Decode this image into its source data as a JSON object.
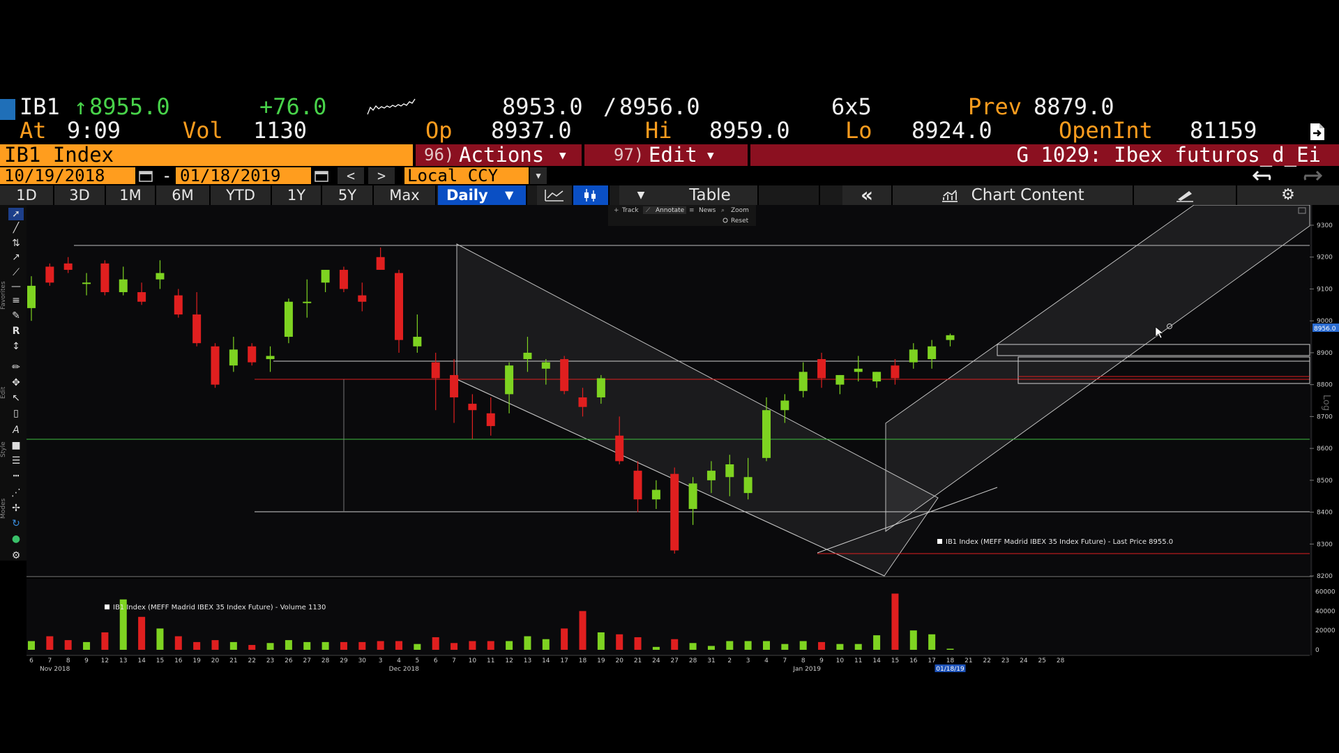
{
  "quote": {
    "ticker": "IB1",
    "arrow": "↑",
    "last": "8955.0",
    "change": "+76.0",
    "bid_ask_bid": "8953.0",
    "bid_ask_sep": "/",
    "bid_ask_ask": "8956.0",
    "size": "6x5",
    "prev_label": "Prev",
    "prev_value": "8879.0",
    "at_label": "At",
    "at_time": "9:09",
    "vol_label": "Vol",
    "vol_value": "1130",
    "op_label": "Op",
    "op_value": "8937.0",
    "hi_label": "Hi",
    "hi_value": "8959.0",
    "lo_label": "Lo",
    "lo_value": "8924.0",
    "oi_label": "OpenInt",
    "oi_value": "81159"
  },
  "security_bar": {
    "security": "IB1 Index",
    "actions_num": "96)",
    "actions_label": "Actions",
    "edit_num": "97)",
    "edit_label": "Edit",
    "chart_title": "G 1029: Ibex futuros_d_Ei"
  },
  "date_bar": {
    "start_date": "10/19/2018",
    "dash": "-",
    "end_date": "01/18/2019",
    "prev_btn": "<",
    "next_btn": ">",
    "currency": "Local CCY"
  },
  "range_bar": {
    "ranges": [
      "1D",
      "3D",
      "1M",
      "6M",
      "YTD",
      "1Y",
      "5Y",
      "Max"
    ],
    "period": "Daily",
    "table_label": "Table",
    "collapse": "«",
    "chart_content": "Chart Content"
  },
  "chart_toolbar": {
    "track": "Track",
    "annotate": "Annotate",
    "news": "News",
    "zoom": "Zoom",
    "reset": "Reset"
  },
  "side_labels": {
    "favorites": "Favorites",
    "edit": "Edit",
    "style": "Style",
    "modes": "Modes"
  },
  "colors": {
    "up": "#7ed321",
    "down": "#e01f1f",
    "accent": "#ff9d1e",
    "red_bar": "#8b1020",
    "blue_btn": "#0a4fc4"
  },
  "chart_data": {
    "type": "candlestick",
    "price_legend": "IB1 Index (MEFF Madrid IBEX 35 Index Future) - Last Price 8955.0",
    "volume_legend": "IB1 Index (MEFF Madrid IBEX 35 Index Future) - Volume 1130",
    "last_price_tag": "8956.0",
    "scale_label": "Log",
    "price_ticks": [
      "9300",
      "9200",
      "9100",
      "9000",
      "8900",
      "8800",
      "8700",
      "8600",
      "8500",
      "8400",
      "8300",
      "8200"
    ],
    "volume_ticks": [
      "60000",
      "40000",
      "20000",
      "0"
    ],
    "months": [
      {
        "label": "Nov 2018",
        "at": 0
      },
      {
        "label": "Dec 2018",
        "at": 19
      },
      {
        "label": "Jan 2019",
        "at": 41
      }
    ],
    "end_date_marker": "01/18/19",
    "days": [
      "6",
      "7",
      "8",
      "9",
      "12",
      "13",
      "14",
      "15",
      "16",
      "19",
      "20",
      "21",
      "22",
      "23",
      "26",
      "27",
      "28",
      "29",
      "30",
      "3",
      "4",
      "5",
      "6",
      "7",
      "10",
      "11",
      "12",
      "13",
      "14",
      "17",
      "18",
      "19",
      "20",
      "21",
      "24",
      "27",
      "28",
      "31",
      "2",
      "3",
      "4",
      "7",
      "8",
      "9",
      "10",
      "11",
      "14",
      "15",
      "16",
      "17",
      "18"
    ],
    "future_days": [
      "21",
      "22",
      "23",
      "24",
      "25",
      "28"
    ],
    "ohlc": [
      [
        9040,
        9140,
        9000,
        9110
      ],
      [
        9170,
        9180,
        9110,
        9120
      ],
      [
        9180,
        9200,
        9150,
        9160
      ],
      [
        9120,
        9150,
        9080,
        9120
      ],
      [
        9180,
        9190,
        9080,
        9090
      ],
      [
        9090,
        9170,
        9080,
        9130
      ],
      [
        9090,
        9120,
        9050,
        9060
      ],
      [
        9130,
        9190,
        9100,
        9150
      ],
      [
        9080,
        9100,
        9010,
        9020
      ],
      [
        9020,
        9090,
        8920,
        8930
      ],
      [
        8920,
        8930,
        8790,
        8800
      ],
      [
        8860,
        8950,
        8840,
        8910
      ],
      [
        8920,
        8930,
        8860,
        8870
      ],
      [
        8880,
        8920,
        8840,
        8890
      ],
      [
        8950,
        9070,
        8930,
        9060
      ],
      [
        9060,
        9130,
        9010,
        9060
      ],
      [
        9120,
        9160,
        9090,
        9160
      ],
      [
        9160,
        9170,
        9090,
        9100
      ],
      [
        9080,
        9120,
        9030,
        9060
      ],
      [
        9200,
        9230,
        9160,
        9160
      ],
      [
        9150,
        9160,
        8900,
        8940
      ],
      [
        8920,
        9020,
        8900,
        8950
      ],
      [
        8870,
        8900,
        8720,
        8820
      ],
      [
        8830,
        8880,
        8680,
        8760
      ],
      [
        8740,
        8770,
        8630,
        8720
      ],
      [
        8710,
        8760,
        8640,
        8670
      ],
      [
        8770,
        8870,
        8710,
        8860
      ],
      [
        8880,
        8950,
        8840,
        8900
      ],
      [
        8850,
        8880,
        8800,
        8870
      ],
      [
        8880,
        8890,
        8770,
        8780
      ],
      [
        8760,
        8790,
        8700,
        8730
      ],
      [
        8760,
        8830,
        8740,
        8820
      ],
      [
        8640,
        8700,
        8550,
        8560
      ],
      [
        8530,
        8560,
        8400,
        8440
      ],
      [
        8440,
        8500,
        8410,
        8470
      ],
      [
        8520,
        8540,
        8270,
        8280
      ],
      [
        8410,
        8510,
        8360,
        8490
      ],
      [
        8500,
        8560,
        8460,
        8530
      ],
      [
        8510,
        8580,
        8450,
        8550
      ],
      [
        8460,
        8570,
        8440,
        8510
      ],
      [
        8570,
        8760,
        8560,
        8720
      ],
      [
        8720,
        8770,
        8680,
        8750
      ],
      [
        8780,
        8870,
        8760,
        8840
      ],
      [
        8880,
        8900,
        8790,
        8820
      ],
      [
        8800,
        8830,
        8770,
        8830
      ],
      [
        8840,
        8890,
        8810,
        8850
      ],
      [
        8810,
        8840,
        8790,
        8840
      ],
      [
        8860,
        8880,
        8800,
        8820
      ],
      [
        8870,
        8930,
        8850,
        8910
      ],
      [
        8880,
        8940,
        8850,
        8920
      ],
      [
        8940,
        8960,
        8920,
        8955
      ]
    ],
    "volume": [
      9000,
      14000,
      10000,
      8000,
      18000,
      52000,
      34000,
      22000,
      14000,
      8000,
      10000,
      8000,
      5000,
      7000,
      10000,
      8000,
      8000,
      8000,
      8000,
      9000,
      9000,
      6000,
      13000,
      7000,
      9000,
      9000,
      9000,
      14000,
      11000,
      22000,
      40000,
      18000,
      16000,
      13000,
      3000,
      11000,
      7000,
      4000,
      9000,
      9000,
      9000,
      6000,
      9000,
      8000,
      6000,
      6000,
      15000,
      58000,
      20000,
      16000,
      1130
    ]
  }
}
